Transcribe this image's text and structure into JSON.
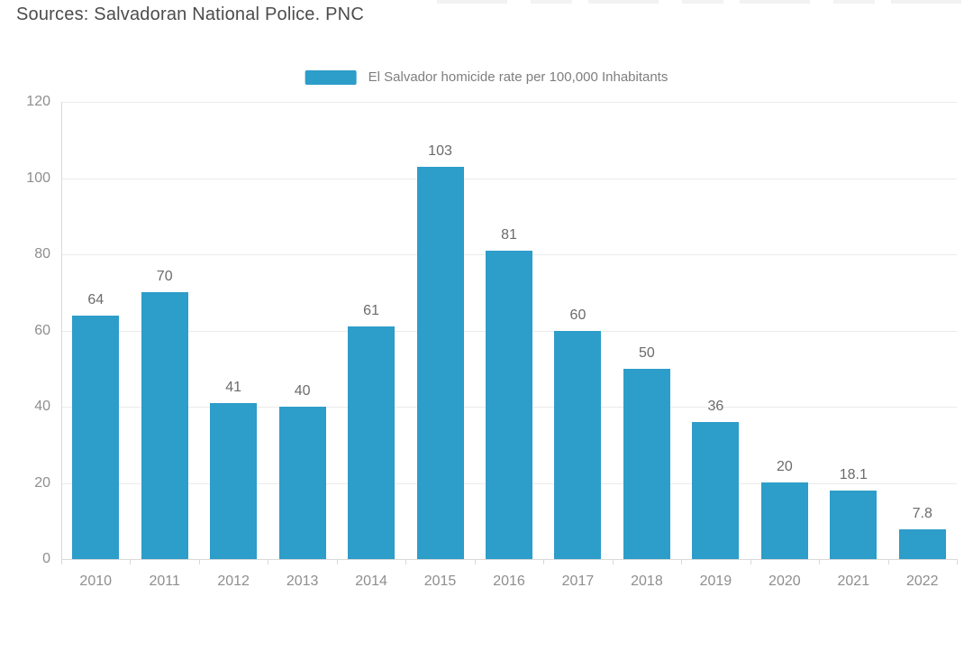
{
  "page": {
    "source_note": "Sources: Salvadoran National Police. PNC"
  },
  "legend": {
    "label": "El Salvador homicide rate per 100,000 Inhabitants"
  },
  "chart_data": {
    "type": "bar",
    "title": "",
    "categories": [
      "2010",
      "2011",
      "2012",
      "2013",
      "2014",
      "2015",
      "2016",
      "2017",
      "2018",
      "2019",
      "2020",
      "2021",
      "2022"
    ],
    "series": [
      {
        "name": "El Salvador homicide rate per 100,000 Inhabitants",
        "values": [
          64,
          70,
          41,
          40,
          61,
          103,
          81,
          60,
          50,
          36,
          20,
          18.1,
          7.8
        ]
      }
    ],
    "value_labels": [
      "64",
      "70",
      "41",
      "40",
      "61",
      "103",
      "81",
      "60",
      "50",
      "36",
      "20",
      "18.1",
      "7.8"
    ],
    "xlabel": "",
    "ylabel": "",
    "ylim": [
      0,
      120
    ],
    "yticks": [
      0,
      20,
      40,
      60,
      80,
      100,
      120
    ],
    "grid": true,
    "legend_position": "top-center",
    "colors": {
      "bar": "#2d9dc9",
      "grid": "#ebebeb",
      "axis": "#d9d9d9",
      "tick_label": "#8e8e8e",
      "value_label": "#6b6b6b",
      "legend_text": "#7e7e7e",
      "source_text": "#4c4c4c"
    }
  }
}
